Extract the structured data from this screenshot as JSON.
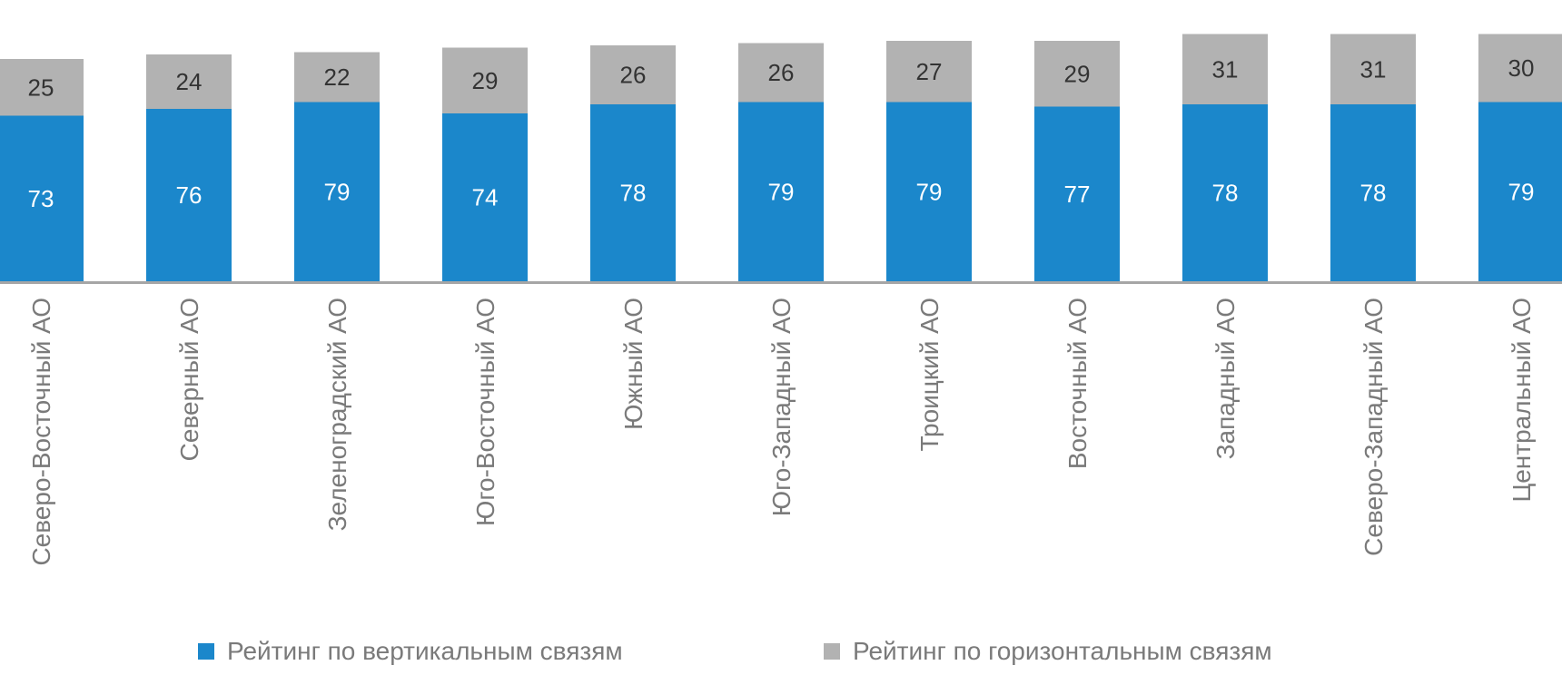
{
  "chart_data": {
    "type": "bar",
    "stacked": true,
    "categories": [
      "Северо-Восточный АО",
      "Северный АО",
      "Зеленоградский АО",
      "Юго-Восточный АО",
      "Южный АО",
      "Юго-Западный АО",
      "Троицкий АО",
      "Восточный АО",
      "Западный АО",
      "Северо-Западный АО",
      "Центральный АО"
    ],
    "series": [
      {
        "name": "Рейтинг по вертикальным связям",
        "color": "#1b87cb",
        "values": [
          73,
          76,
          79,
          74,
          78,
          79,
          79,
          77,
          78,
          78,
          79
        ]
      },
      {
        "name": "Рейтинг по горизонтальным связям",
        "color": "#b2b2b2",
        "values": [
          25,
          24,
          22,
          29,
          26,
          26,
          27,
          29,
          31,
          31,
          30
        ]
      }
    ],
    "legend_position": "bottom",
    "grid": false,
    "axis_color": "#a6a6a6"
  }
}
